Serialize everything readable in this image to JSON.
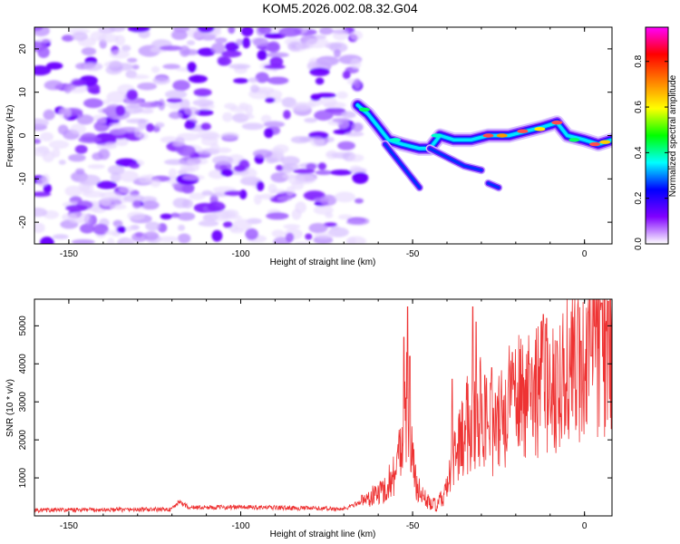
{
  "title": "KOM5.2026.002.08.32.G04",
  "chart_data": [
    {
      "type": "heatmap",
      "xlabel": "Height of straight line (km)",
      "ylabel": "Frequency (Hz)",
      "xlim": [
        -160,
        8
      ],
      "ylim": [
        -25,
        25
      ],
      "xticks": [
        -150,
        -100,
        -50,
        0
      ],
      "yticks": [
        -20,
        -10,
        0,
        10,
        20
      ],
      "noise_region_x": [
        -160,
        -65
      ],
      "signal_track": [
        {
          "x": -66,
          "y": 7
        },
        {
          "x": -63,
          "y": 5
        },
        {
          "x": -60,
          "y": 2
        },
        {
          "x": -57,
          "y": -1
        },
        {
          "x": -53,
          "y": -2
        },
        {
          "x": -48,
          "y": -3
        },
        {
          "x": -45,
          "y": -3
        },
        {
          "x": -42,
          "y": 0
        },
        {
          "x": -38,
          "y": -1
        },
        {
          "x": -33,
          "y": -1
        },
        {
          "x": -28,
          "y": 0
        },
        {
          "x": -22,
          "y": 0
        },
        {
          "x": -17,
          "y": 1
        },
        {
          "x": -12,
          "y": 2
        },
        {
          "x": -8,
          "y": 3
        },
        {
          "x": -5,
          "y": 0
        },
        {
          "x": 0,
          "y": -1
        },
        {
          "x": 4,
          "y": -2
        },
        {
          "x": 8,
          "y": -1
        }
      ],
      "colorbar": {
        "label": "Normalized spectral amplitude",
        "ticks": [
          0.0,
          0.2,
          0.4,
          0.6,
          0.8
        ],
        "tick_labels": [
          "0.0",
          "0.2",
          "0.4",
          "0.6",
          "0.8"
        ],
        "range": [
          0,
          0.95
        ],
        "colors": [
          "#ffffff",
          "#8000ff",
          "#0000ff",
          "#00ffff",
          "#00ff00",
          "#ffff00",
          "#ff8000",
          "#ff0000",
          "#ff00ff"
        ]
      }
    },
    {
      "type": "line",
      "xlabel": "Height of straight line (km)",
      "ylabel": "SNR (10 * v/v)",
      "xlim": [
        -160,
        8
      ],
      "ylim": [
        0,
        5700
      ],
      "xticks": [
        -150,
        -100,
        -50,
        0
      ],
      "yticks": [
        1000,
        2000,
        3000,
        4000,
        5000
      ],
      "line_color": "#ee3333",
      "baseline": [
        {
          "x": -160,
          "y": 150
        },
        {
          "x": -120,
          "y": 170
        },
        {
          "x": -118,
          "y": 380
        },
        {
          "x": -115,
          "y": 220
        },
        {
          "x": -100,
          "y": 230
        },
        {
          "x": -80,
          "y": 200
        },
        {
          "x": -70,
          "y": 180
        },
        {
          "x": -63,
          "y": 450
        },
        {
          "x": -58,
          "y": 700
        },
        {
          "x": -55,
          "y": 1200
        },
        {
          "x": -53,
          "y": 1900
        },
        {
          "x": -52,
          "y": 3100
        },
        {
          "x": -51,
          "y": 2200
        },
        {
          "x": -49,
          "y": 800
        },
        {
          "x": -46,
          "y": 400
        },
        {
          "x": -43,
          "y": 250
        },
        {
          "x": -40,
          "y": 700
        },
        {
          "x": -37,
          "y": 1800
        },
        {
          "x": -33,
          "y": 2600
        },
        {
          "x": -30,
          "y": 2800
        },
        {
          "x": -26,
          "y": 2200
        },
        {
          "x": -22,
          "y": 2900
        },
        {
          "x": -18,
          "y": 3300
        },
        {
          "x": -13,
          "y": 3400
        },
        {
          "x": -9,
          "y": 3400
        },
        {
          "x": -5,
          "y": 3900
        },
        {
          "x": -1,
          "y": 4000
        },
        {
          "x": 3,
          "y": 4300
        },
        {
          "x": 8,
          "y": 4500
        }
      ],
      "spikes": [
        {
          "x": -52.5,
          "y": 4700
        },
        {
          "x": -51.5,
          "y": 5500
        },
        {
          "x": -50.8,
          "y": 4200
        },
        {
          "x": -38.5,
          "y": 3600
        },
        {
          "x": -32.5,
          "y": 5500
        },
        {
          "x": -31.5,
          "y": 5100
        },
        {
          "x": -29,
          "y": 3700
        },
        {
          "x": -27,
          "y": 3900
        },
        {
          "x": -21,
          "y": 4300
        },
        {
          "x": -16,
          "y": 4000
        },
        {
          "x": -12,
          "y": 5300
        },
        {
          "x": -11,
          "y": 5200
        },
        {
          "x": -8,
          "y": 4600
        },
        {
          "x": -6,
          "y": 4400
        },
        {
          "x": -1,
          "y": 4600
        },
        {
          "x": 2,
          "y": 4200
        },
        {
          "x": 5,
          "y": 5600
        },
        {
          "x": 7,
          "y": 5650
        }
      ]
    }
  ]
}
